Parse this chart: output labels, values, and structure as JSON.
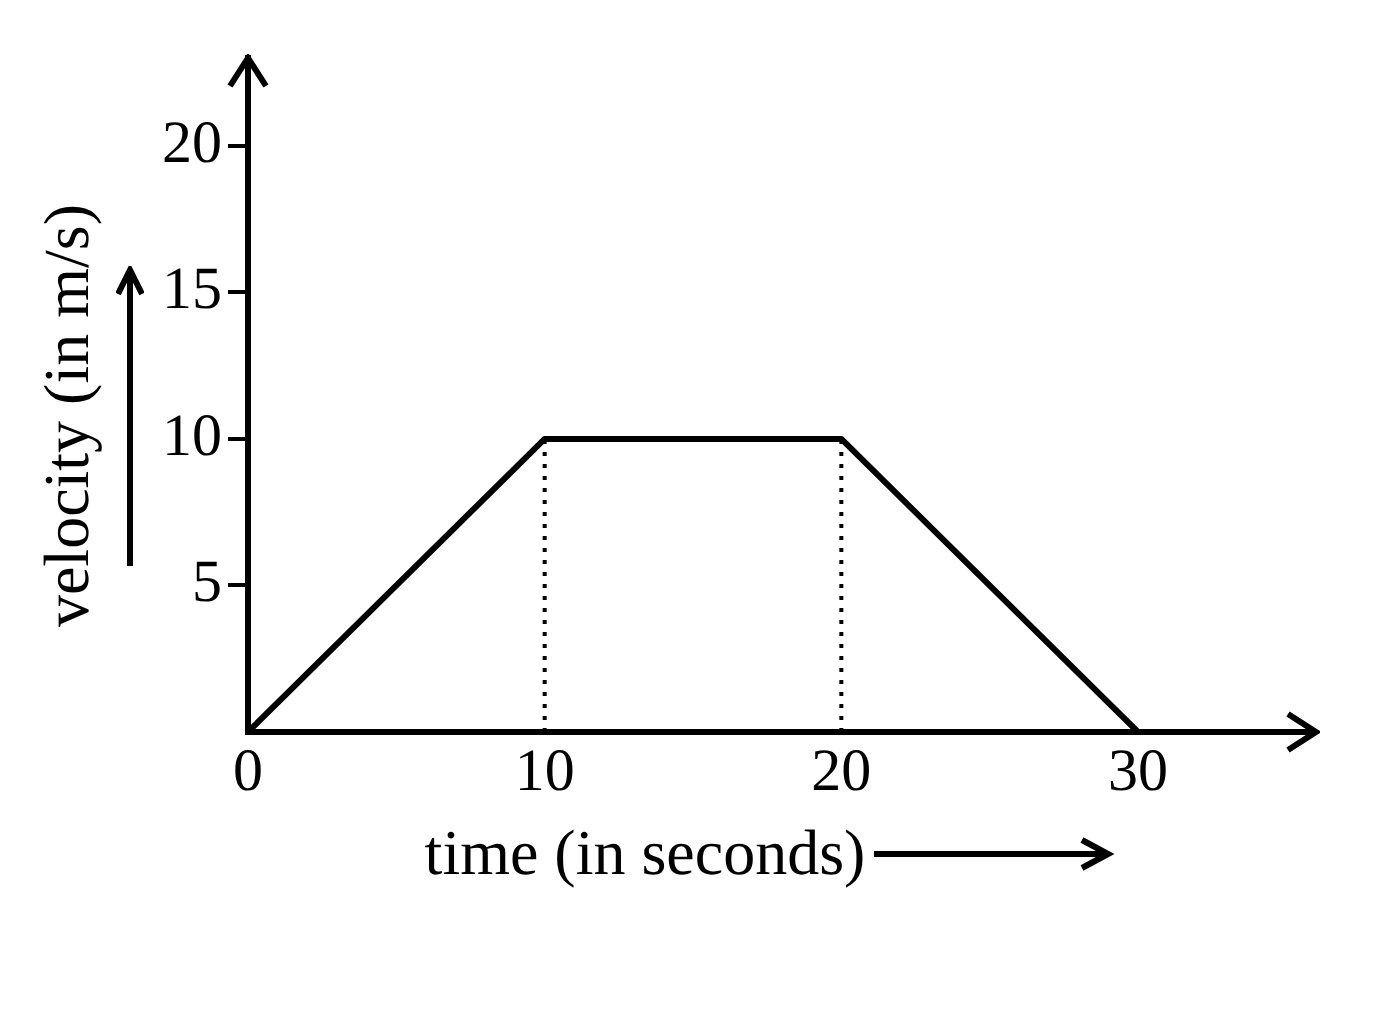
{
  "chart_data": {
    "type": "line",
    "xlabel": "time (in seconds)",
    "ylabel": "velocity (in m/s)",
    "xlim": [
      0,
      36
    ],
    "xticks": [
      0,
      10,
      20,
      30
    ],
    "ylim": [
      0,
      23
    ],
    "yticks": [
      5,
      10,
      15,
      20
    ],
    "grid": false,
    "marker": "none",
    "series": [
      {
        "x": [
          0,
          10,
          20,
          30
        ],
        "values": [
          0,
          10,
          10,
          0
        ],
        "color": "#000000",
        "line_style": "solid"
      },
      {
        "x": [
          10,
          10
        ],
        "values": [
          0,
          10
        ],
        "color": "#000000",
        "line_style": "dotted"
      },
      {
        "x": [
          20,
          20
        ],
        "values": [
          0,
          10
        ],
        "color": "#000000",
        "line_style": "dotted"
      }
    ]
  }
}
